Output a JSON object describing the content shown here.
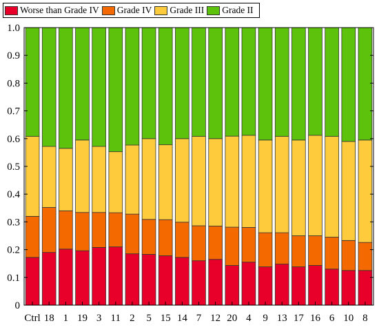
{
  "chart_data": {
    "type": "bar",
    "stacked": true,
    "categories": [
      "Ctrl",
      "18",
      "1",
      "19",
      "3",
      "11",
      "2",
      "5",
      "15",
      "14",
      "7",
      "12",
      "20",
      "4",
      "9",
      "13",
      "17",
      "16",
      "6",
      "10",
      "8"
    ],
    "series": [
      {
        "name": "Worse than Grade IV",
        "color": "#E8002B",
        "values": [
          0.172,
          0.19,
          0.202,
          0.196,
          0.208,
          0.21,
          0.185,
          0.183,
          0.178,
          0.172,
          0.16,
          0.165,
          0.143,
          0.155,
          0.138,
          0.148,
          0.138,
          0.143,
          0.13,
          0.125,
          0.125
        ]
      },
      {
        "name": "Grade IV",
        "color": "#F56A00",
        "values": [
          0.148,
          0.162,
          0.138,
          0.138,
          0.126,
          0.123,
          0.143,
          0.126,
          0.13,
          0.127,
          0.126,
          0.12,
          0.138,
          0.125,
          0.123,
          0.113,
          0.112,
          0.107,
          0.115,
          0.108,
          0.101
        ]
      },
      {
        "name": "Grade III",
        "color": "#FDCB3B",
        "values": [
          0.288,
          0.22,
          0.225,
          0.261,
          0.238,
          0.22,
          0.249,
          0.291,
          0.27,
          0.301,
          0.322,
          0.315,
          0.328,
          0.332,
          0.334,
          0.347,
          0.345,
          0.362,
          0.363,
          0.357,
          0.369
        ]
      },
      {
        "name": "Grade II",
        "color": "#5CC20B",
        "values": [
          0.392,
          0.428,
          0.435,
          0.405,
          0.428,
          0.447,
          0.423,
          0.4,
          0.422,
          0.4,
          0.392,
          0.4,
          0.391,
          0.388,
          0.405,
          0.392,
          0.405,
          0.388,
          0.392,
          0.41,
          0.405
        ]
      }
    ],
    "ylim": [
      0,
      1.0
    ],
    "yticks": [
      "0",
      "0.1",
      "0.2",
      "0.3",
      "0.4",
      "0.5",
      "0.6",
      "0.7",
      "0.8",
      "0.9",
      "1.0"
    ],
    "legend_position": "top-left",
    "grid": false
  }
}
